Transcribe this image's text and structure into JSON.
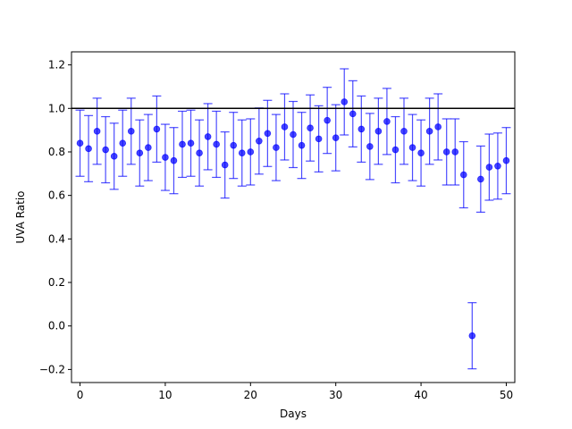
{
  "chart_data": {
    "type": "scatter",
    "title": "",
    "xlabel": "Days",
    "ylabel": "UVA Ratio",
    "xlim": [
      -1,
      51
    ],
    "ylim": [
      -0.26,
      1.26
    ],
    "xticks": [
      0,
      10,
      20,
      30,
      40,
      50
    ],
    "xtick_labels": [
      "0",
      "10",
      "20",
      "30",
      "40",
      "50"
    ],
    "yticks": [
      -0.2,
      0.0,
      0.2,
      0.4,
      0.6,
      0.8,
      1.0,
      1.2
    ],
    "ytick_labels": [
      "−0.2",
      "0.0",
      "0.2",
      "0.4",
      "0.6",
      "0.8",
      "1.0",
      "1.2"
    ],
    "reference_line": 1.0,
    "grid": false,
    "marker_color": "#0000ff",
    "errorbar_color": "#0000ff",
    "series": [
      {
        "x": [
          0,
          1,
          2,
          3,
          4,
          5,
          6,
          7,
          8,
          9,
          10,
          11,
          12,
          13,
          14,
          15,
          16,
          17,
          18,
          19,
          20,
          21,
          22,
          23,
          24,
          25,
          26,
          27,
          28,
          29,
          30,
          31,
          32,
          33,
          34,
          35,
          36,
          37,
          38,
          39,
          40,
          41,
          42,
          43,
          44,
          45,
          46,
          47,
          48,
          49,
          50
        ],
        "y": [
          0.84,
          0.815,
          0.895,
          0.81,
          0.78,
          0.84,
          0.895,
          0.795,
          0.82,
          0.905,
          0.775,
          0.76,
          0.835,
          0.84,
          0.795,
          0.87,
          0.835,
          0.74,
          0.83,
          0.795,
          0.8,
          0.85,
          0.885,
          0.82,
          0.915,
          0.88,
          0.83,
          0.91,
          0.86,
          0.945,
          0.865,
          1.03,
          0.975,
          0.905,
          0.825,
          0.895,
          0.94,
          0.81,
          0.895,
          0.82,
          0.795,
          0.895,
          0.915,
          0.8,
          0.8,
          0.695,
          -0.045,
          0.675,
          0.73,
          0.735,
          0.76
        ],
        "yerr": 0.152
      }
    ]
  }
}
